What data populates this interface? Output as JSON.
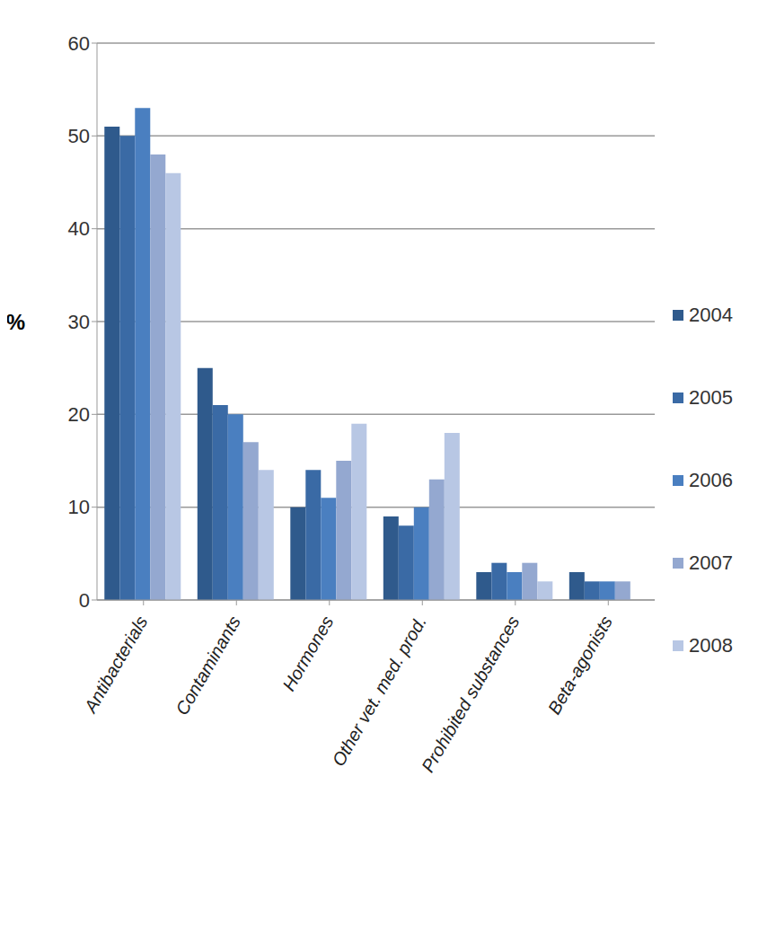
{
  "chart_data": {
    "type": "bar",
    "y_label": "%",
    "categories": [
      "Antibacterials",
      "Contaminants",
      "Hormones",
      "Other vet. med. prod.",
      "Prohibited substances",
      "Beta-agonists"
    ],
    "series": [
      {
        "name": "2004",
        "color": "#2f5a8c",
        "values": [
          51,
          25,
          10,
          9,
          3,
          3
        ]
      },
      {
        "name": "2005",
        "color": "#3a6aa5",
        "values": [
          50,
          21,
          14,
          8,
          4,
          2
        ]
      },
      {
        "name": "2006",
        "color": "#4a7fc0",
        "values": [
          53,
          20,
          11,
          10,
          3,
          2
        ]
      },
      {
        "name": "2007",
        "color": "#94a8d0",
        "values": [
          48,
          17,
          15,
          13,
          4,
          2
        ]
      },
      {
        "name": "2008",
        "color": "#b8c7e4",
        "values": [
          46,
          14,
          19,
          18,
          2,
          0
        ]
      }
    ],
    "ylim": [
      0,
      60
    ],
    "yticks": [
      0,
      10,
      20,
      30,
      40,
      50,
      60
    ],
    "grid": true,
    "legend": "right"
  }
}
